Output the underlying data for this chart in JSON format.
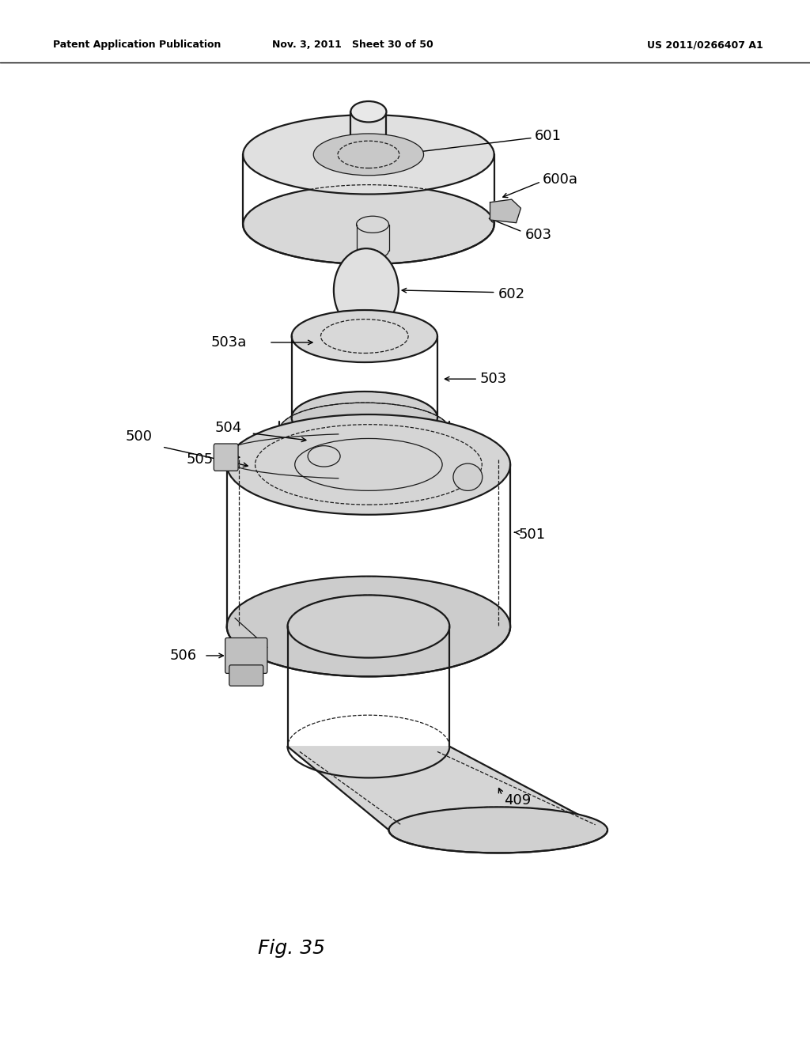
{
  "bg_color": "#ffffff",
  "header_left": "Patent Application Publication",
  "header_center": "Nov. 3, 2011   Sheet 30 of 50",
  "header_right": "US 2011/0266407 A1",
  "fig_label": "Fig. 35",
  "line_color": "#1a1a1a"
}
